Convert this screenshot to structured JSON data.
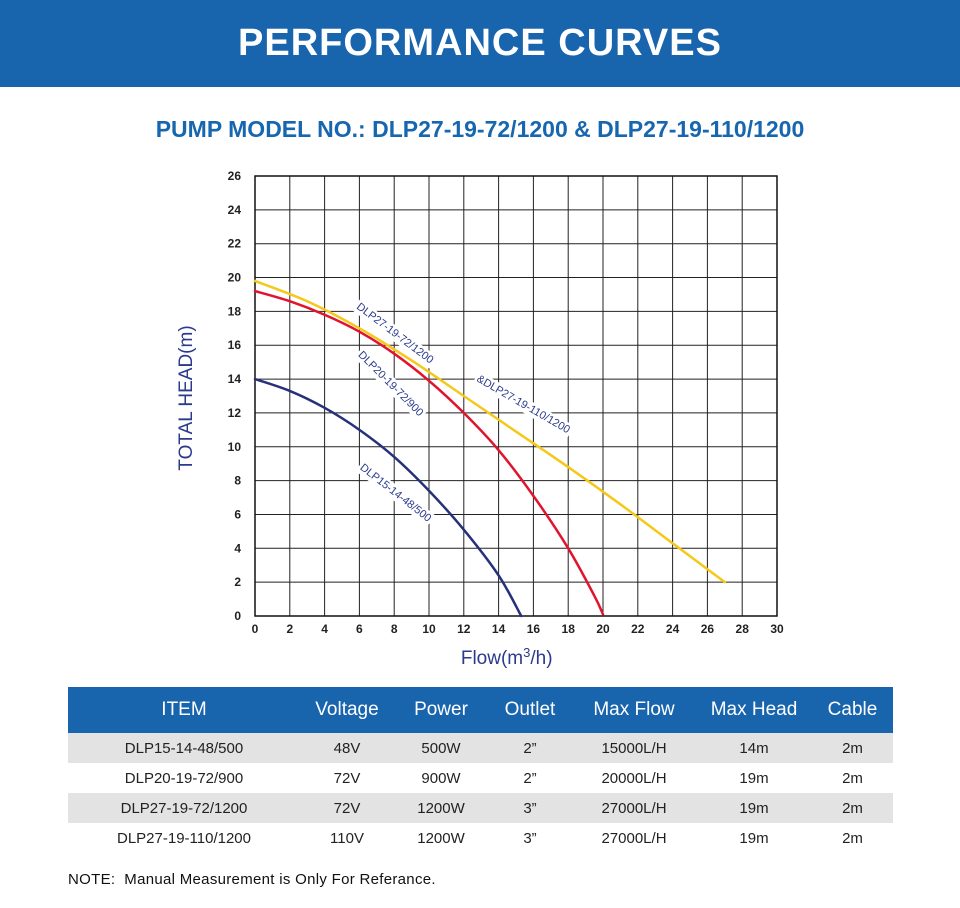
{
  "header": {
    "title": "PERFORMANCE CURVES",
    "subtitle": "PUMP MODEL NO.: DLP27-19-72/1200 & DLP27-19-110/1200"
  },
  "chart_data": {
    "type": "line",
    "xlabel_main": "Flow(m",
    "xlabel_sup": "3",
    "xlabel_end": "/h)",
    "ylabel": "TOTAL HEAD(m)",
    "xlim": [
      0,
      30
    ],
    "ylim": [
      0,
      26
    ],
    "x_ticks": [
      "0",
      "2",
      "4",
      "6",
      "8",
      "10",
      "12",
      "14",
      "16",
      "18",
      "20",
      "22",
      "24",
      "26",
      "28",
      "30"
    ],
    "y_ticks": [
      "0",
      "2",
      "4",
      "6",
      "8",
      "10",
      "12",
      "14",
      "16",
      "18",
      "20",
      "22",
      "24",
      "26"
    ],
    "grid": true,
    "series": [
      {
        "name": "DLP15-14-48/500",
        "color": "#27317a",
        "points": [
          [
            0,
            14
          ],
          [
            2,
            13.3
          ],
          [
            4,
            12.3
          ],
          [
            6,
            11
          ],
          [
            8,
            9.4
          ],
          [
            10,
            7.4
          ],
          [
            12,
            5.1
          ],
          [
            14,
            2.4
          ],
          [
            15.3,
            0
          ]
        ]
      },
      {
        "name": "DLP20-19-72/900",
        "color": "#e0152d",
        "points": [
          [
            0,
            19.2
          ],
          [
            2,
            18.6
          ],
          [
            4,
            17.8
          ],
          [
            6,
            16.8
          ],
          [
            8,
            15.5
          ],
          [
            10,
            13.9
          ],
          [
            12,
            12
          ],
          [
            14,
            9.8
          ],
          [
            16,
            7.1
          ],
          [
            18,
            4
          ],
          [
            19.5,
            1.2
          ],
          [
            20,
            0.1
          ]
        ]
      },
      {
        "name": "DLP27-19-72/1200 &DLP27-19-110/1200",
        "label_line1": "DLP27-19-72/1200",
        "label_line2": "&DLP27-19-110/1200",
        "color": "#f5c81a",
        "points": [
          [
            0,
            19.8
          ],
          [
            3,
            18.6
          ],
          [
            6,
            17
          ],
          [
            9,
            15.1
          ],
          [
            12,
            13
          ],
          [
            15,
            10.9
          ],
          [
            18,
            8.8
          ],
          [
            21,
            6.6
          ],
          [
            24,
            4.3
          ],
          [
            27,
            2
          ]
        ]
      }
    ]
  },
  "table": {
    "headers": [
      "ITEM",
      "Voltage",
      "Power",
      "Outlet",
      "Max Flow",
      "Max Head",
      "Cable"
    ],
    "rows": [
      [
        "DLP15-14-48/500",
        "48V",
        "500W",
        "2”",
        "15000L/H",
        "14m",
        "2m"
      ],
      [
        "DLP20-19-72/900",
        "72V",
        "900W",
        "2”",
        "20000L/H",
        "19m",
        "2m"
      ],
      [
        "DLP27-19-72/1200",
        "72V",
        "1200W",
        "3”",
        "27000L/H",
        "19m",
        "2m"
      ],
      [
        "DLP27-19-110/1200",
        "110V",
        "1200W",
        "3”",
        "27000L/H",
        "19m",
        "2m"
      ]
    ]
  },
  "note": "NOTE:  Manual Measurement is Only For Referance.",
  "colors": {
    "banner": "#1864ad",
    "subtitle": "#1766b0",
    "row_shade": "#e3e3e3",
    "axis_text": "#2b3a8c"
  }
}
